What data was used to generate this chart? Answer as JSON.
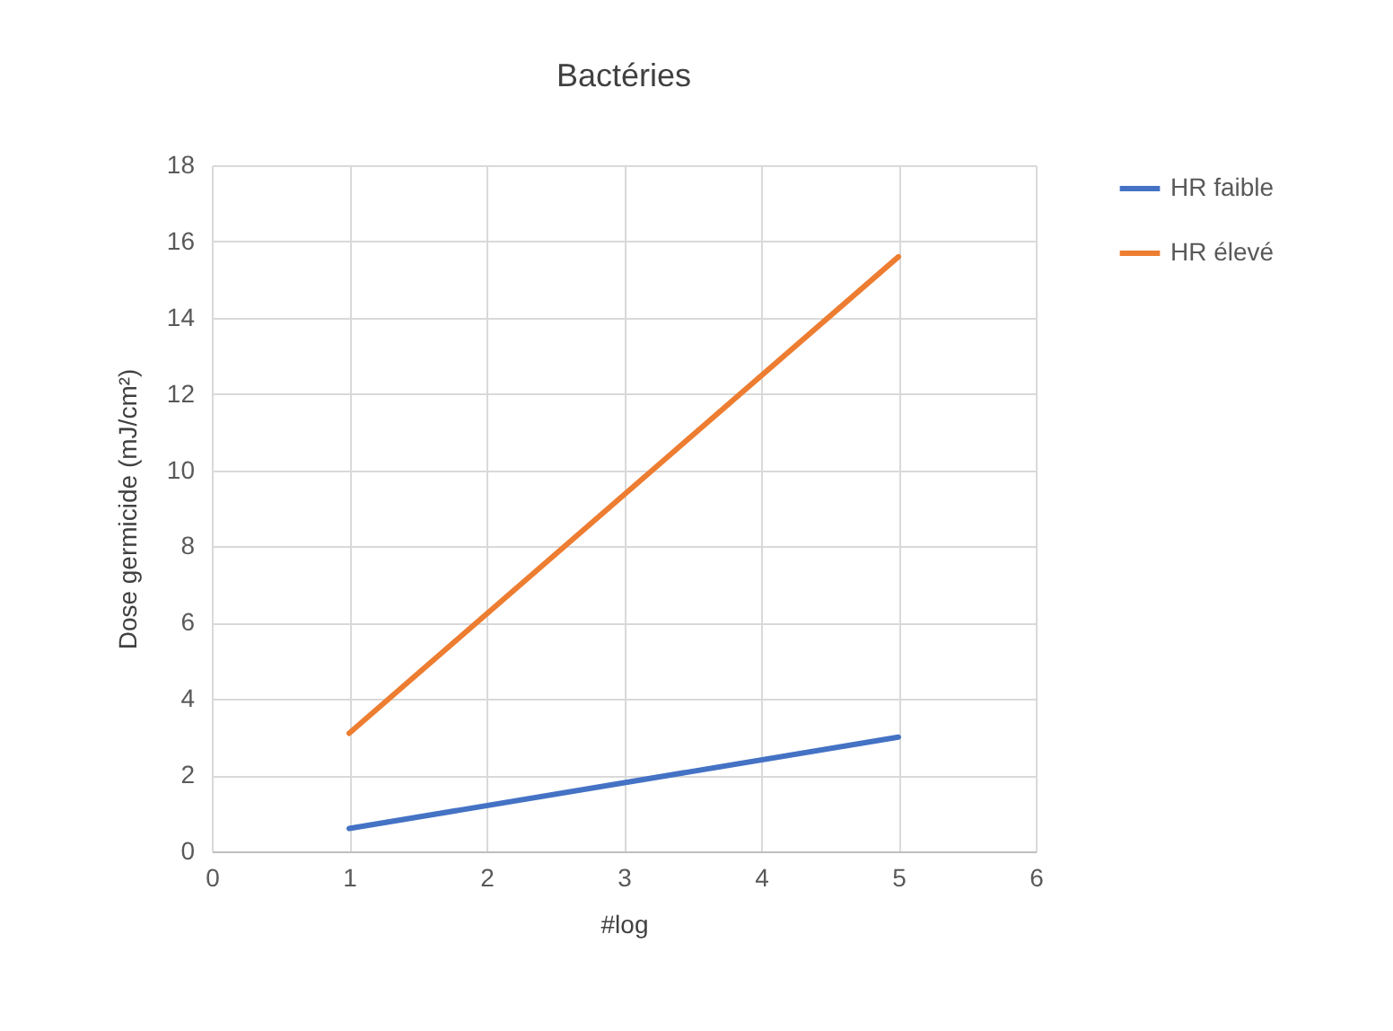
{
  "chart_data": {
    "type": "line",
    "title": "Bactéries",
    "xlabel": "#log",
    "ylabel": "Dose germicide (mJ/cm²)",
    "x": [
      1,
      5
    ],
    "series": [
      {
        "name": "HR faible",
        "color": "#4472c4",
        "values": [
          0.6,
          3.0
        ]
      },
      {
        "name": "HR élevé",
        "color": "#ed7d31",
        "values": [
          3.1,
          15.6
        ]
      }
    ],
    "xlim": [
      0,
      6
    ],
    "xticks": [
      0,
      1,
      2,
      3,
      4,
      5,
      6
    ],
    "ylim": [
      0,
      18
    ],
    "yticks": [
      0,
      2,
      4,
      6,
      8,
      10,
      12,
      14,
      16,
      18
    ],
    "grid": true,
    "legend": "right",
    "marker": "none",
    "line_style": "solid"
  }
}
